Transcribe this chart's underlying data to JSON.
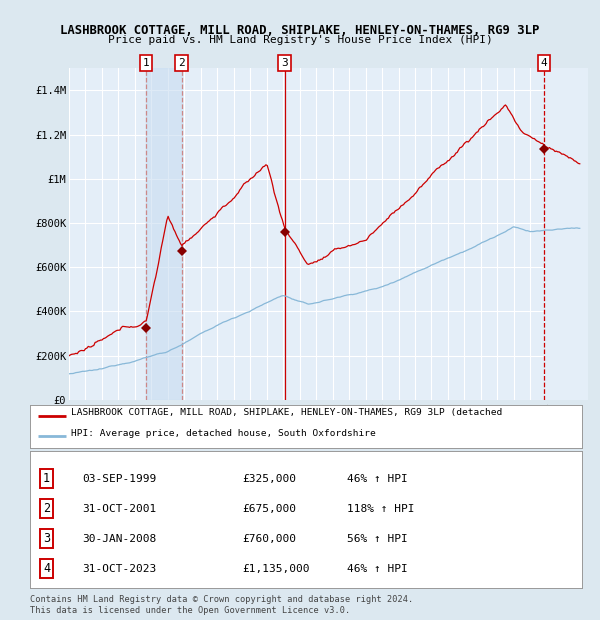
{
  "title": "LASHBROOK COTTAGE, MILL ROAD, SHIPLAKE, HENLEY-ON-THAMES, RG9 3LP",
  "subtitle": "Price paid vs. HM Land Registry's House Price Index (HPI)",
  "xlim_year": [
    1995,
    2026
  ],
  "ylim": [
    0,
    1500000
  ],
  "yticks": [
    0,
    200000,
    400000,
    600000,
    800000,
    1000000,
    1200000,
    1400000
  ],
  "ytick_labels": [
    "£0",
    "£200K",
    "£400K",
    "£600K",
    "£800K",
    "£1M",
    "£1.2M",
    "£1.4M"
  ],
  "bg_color": "#dce8f0",
  "plot_bg_color": "#e4eef8",
  "grid_color": "#ffffff",
  "red_line_color": "#cc0000",
  "blue_line_color": "#88b8d8",
  "marker_color": "#880000",
  "sale_dates_decimal": [
    1999.67,
    2001.83,
    2008.08,
    2023.83
  ],
  "sale_prices": [
    325000,
    675000,
    760000,
    1135000
  ],
  "sale_numbers": [
    "1",
    "2",
    "3",
    "4"
  ],
  "table_data": [
    [
      "1",
      "03-SEP-1999",
      "£325,000",
      "46% ↑ HPI"
    ],
    [
      "2",
      "31-OCT-2001",
      "£675,000",
      "118% ↑ HPI"
    ],
    [
      "3",
      "30-JAN-2008",
      "£760,000",
      "56% ↑ HPI"
    ],
    [
      "4",
      "31-OCT-2023",
      "£1,135,000",
      "46% ↑ HPI"
    ]
  ],
  "legend_red": "LASHBROOK COTTAGE, MILL ROAD, SHIPLAKE, HENLEY-ON-THAMES, RG9 3LP (detached",
  "legend_blue": "HPI: Average price, detached house, South Oxfordshire",
  "footer": "Contains HM Land Registry data © Crown copyright and database right 2024.\nThis data is licensed under the Open Government Licence v3.0."
}
